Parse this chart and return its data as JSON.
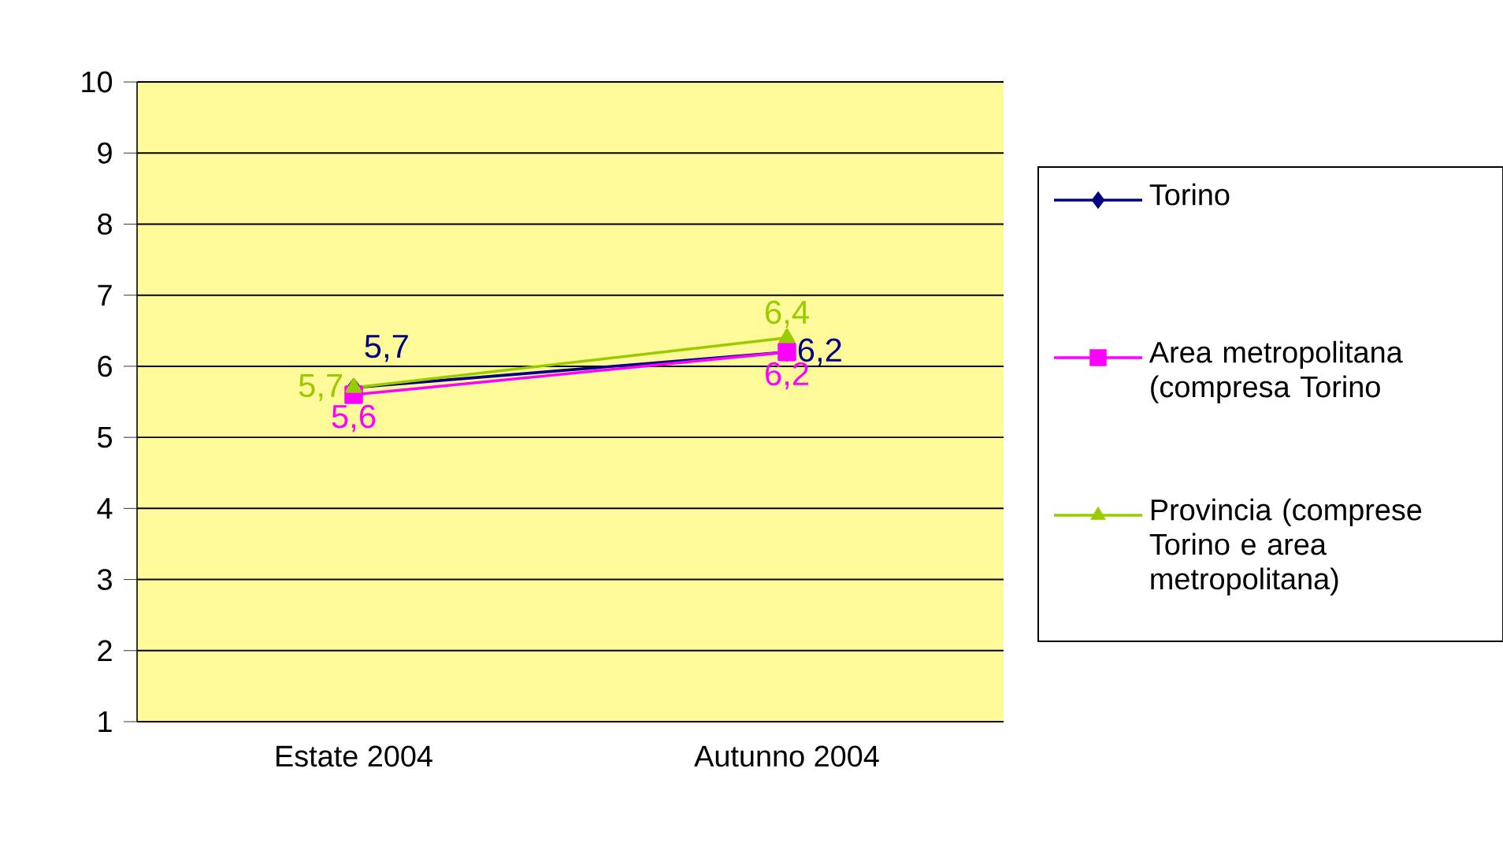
{
  "chart_data": {
    "type": "line",
    "categories": [
      "Estate 2004",
      "Autunno 2004"
    ],
    "series": [
      {
        "name": "Torino",
        "color": "#000080",
        "marker": "diamond",
        "values": [
          5.7,
          6.2
        ],
        "value_labels": [
          "5,7",
          "6,2"
        ]
      },
      {
        "name": "Area metropolitana (compresa Torino",
        "color": "#ff00ff",
        "marker": "square",
        "values": [
          5.6,
          6.2
        ],
        "value_labels": [
          "5,6",
          "6,2"
        ]
      },
      {
        "name": "Provincia (comprese Torino e area metropolitana)",
        "color": "#99cc00",
        "marker": "triangle",
        "values": [
          5.7,
          6.4
        ],
        "value_labels": [
          "5,7",
          "6,4"
        ]
      }
    ],
    "ylim": [
      1,
      10
    ],
    "yticks": [
      1,
      2,
      3,
      4,
      5,
      6,
      7,
      8,
      9,
      10
    ],
    "grid": "y",
    "legend": "right"
  }
}
